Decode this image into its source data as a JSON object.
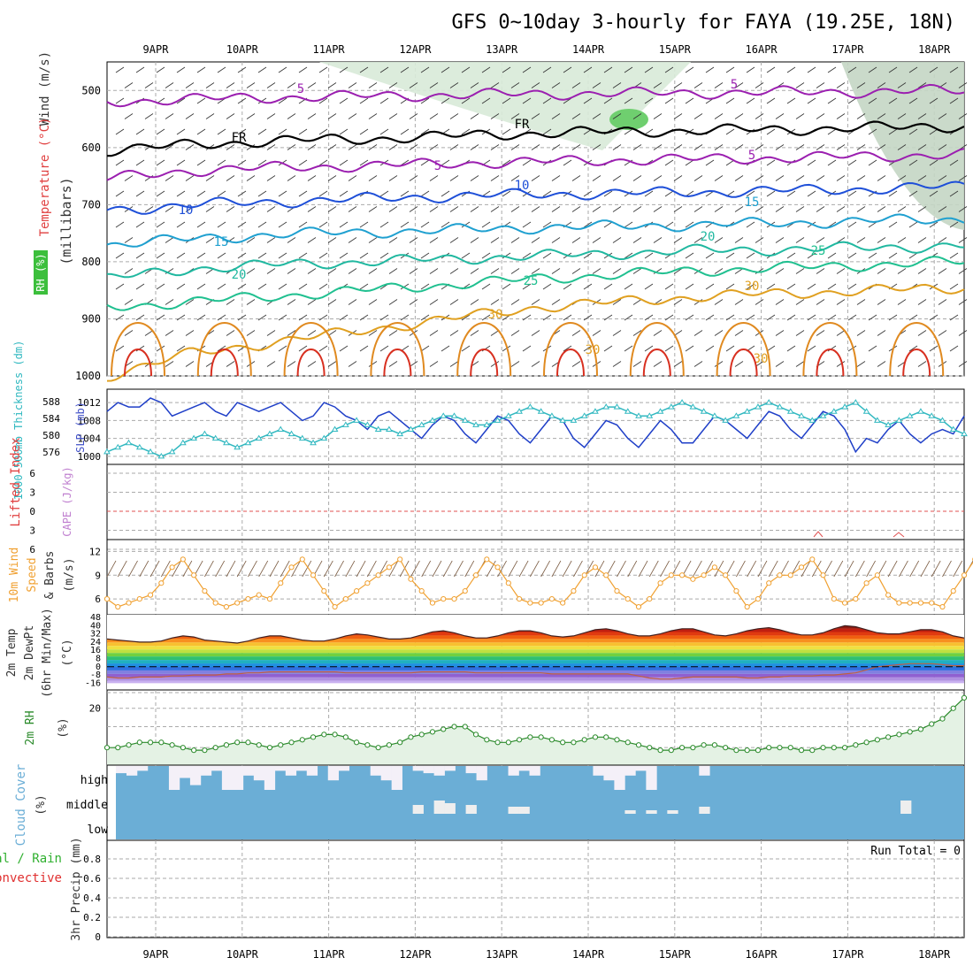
{
  "title": "GFS 0~10day 3-hourly for FAYA (19.25E, 18N)",
  "date_labels": [
    "9APR",
    "10APR",
    "11APR",
    "12APR",
    "13APR",
    "14APR",
    "15APR",
    "16APR",
    "17APR",
    "18APR"
  ],
  "chart_data": [
    {
      "id": "profile",
      "type": "contour",
      "ylabel_parts": [
        "RH (%)",
        "Temperature (°C)",
        "Wind (m/s)",
        "(millibars)"
      ],
      "y_ticks": [
        500,
        600,
        700,
        800,
        900,
        1000
      ],
      "ylim": [
        450,
        1000
      ],
      "contour_labels": [
        "5",
        "5",
        "FR",
        "FR",
        "5",
        "5",
        "10",
        "10",
        "15",
        "15",
        "20",
        "20",
        "25",
        "25",
        "30",
        "30",
        "30",
        "30"
      ],
      "isotherms": [
        {
          "label": "-5",
          "color": "#9b1fb0",
          "p": [
            520,
            515,
            512,
            510,
            508,
            506,
            505,
            504,
            503,
            502,
            500
          ]
        },
        {
          "label": "FR",
          "color": "#000000",
          "p": [
            605,
            595,
            588,
            585,
            580,
            575,
            572,
            570,
            568,
            565,
            562
          ]
        },
        {
          "label": "5",
          "color": "#9b1fb0",
          "p": [
            655,
            640,
            635,
            632,
            628,
            625,
            622,
            620,
            618,
            615,
            612
          ]
        },
        {
          "label": "10",
          "color": "#1e4fd8",
          "p": [
            710,
            700,
            695,
            690,
            685,
            682,
            680,
            678,
            675,
            672,
            668
          ]
        },
        {
          "label": "15",
          "color": "#1fa0d0",
          "p": [
            770,
            760,
            752,
            748,
            745,
            740,
            738,
            735,
            732,
            728,
            725
          ]
        },
        {
          "label": "20",
          "color": "#20b8a0",
          "p": [
            830,
            812,
            805,
            800,
            795,
            790,
            785,
            780,
            778,
            775,
            772
          ]
        },
        {
          "label": "25",
          "color": "#20c090",
          "p": [
            880,
            870,
            860,
            850,
            840,
            830,
            822,
            815,
            810,
            805,
            800
          ]
        },
        {
          "label": "30",
          "color": "#e0a020",
          "p": [
            1000,
            960,
            940,
            920,
            900,
            880,
            870,
            860,
            855,
            850,
            845
          ]
        }
      ]
    },
    {
      "id": "pressure",
      "type": "line",
      "ylabel_left": "1000-500mb Thickness (dm)",
      "ylabel_right": "SLP (mb)",
      "left_ticks": [
        "588",
        "584",
        "580",
        "576"
      ],
      "right_ticks": [
        "1012",
        "1008",
        "1004",
        "1000"
      ],
      "series": [
        {
          "name": "SLP (mb)",
          "color": "#1f3fc8",
          "values": [
            1010,
            1012,
            1011,
            1011,
            1013,
            1012,
            1009,
            1010,
            1011,
            1012,
            1010,
            1009,
            1012,
            1011,
            1010,
            1011,
            1012,
            1010,
            1008,
            1009,
            1012,
            1011,
            1009,
            1008,
            1006,
            1009,
            1010,
            1008,
            1006,
            1004,
            1007,
            1009,
            1008,
            1005,
            1003,
            1006,
            1009,
            1008,
            1005,
            1003,
            1006,
            1009,
            1008,
            1004,
            1002,
            1005,
            1008,
            1007,
            1004,
            1002,
            1005,
            1008,
            1006,
            1003,
            1003,
            1006,
            1009,
            1008,
            1006,
            1004,
            1007,
            1010,
            1009,
            1006,
            1004,
            1007,
            1010,
            1009,
            1006,
            1001,
            1004,
            1003,
            1006,
            1008,
            1005,
            1003,
            1005,
            1006,
            1005,
            1009
          ]
        },
        {
          "name": "1000-500mb Thickness (dm)",
          "color": "#30b8c0",
          "values": [
            1001,
            1002,
            1003,
            1002,
            1001,
            1000,
            1001,
            1003,
            1004,
            1005,
            1004,
            1003,
            1002,
            1003,
            1004,
            1005,
            1006,
            1005,
            1004,
            1003,
            1004,
            1006,
            1007,
            1008,
            1007,
            1006,
            1006,
            1005,
            1006,
            1007,
            1008,
            1009,
            1009,
            1008,
            1007,
            1007,
            1008,
            1009,
            1010,
            1011,
            1010,
            1009,
            1008,
            1008,
            1009,
            1010,
            1011,
            1011,
            1010,
            1009,
            1009,
            1010,
            1011,
            1012,
            1011,
            1010,
            1009,
            1008,
            1009,
            1010,
            1011,
            1012,
            1011,
            1010,
            1009,
            1008,
            1009,
            1010,
            1011,
            1012,
            1010,
            1008,
            1007,
            1008,
            1009,
            1010,
            1009,
            1008,
            1006,
            1005
          ]
        }
      ]
    },
    {
      "id": "stability",
      "type": "line",
      "ylabel_left": "Lifted Index",
      "ylabel_right": "CAPE (J/kg)",
      "ticks": [
        "6",
        "3",
        "0",
        "3",
        "6"
      ],
      "series": [
        {
          "name": "Lifted Index",
          "color": "#e03030",
          "values": []
        }
      ]
    },
    {
      "id": "wind10m",
      "type": "line",
      "ylabel_parts": [
        "10m Wind",
        "Speed",
        "& Barbs"
      ],
      "unit": "(m/s)",
      "y_ticks": [
        6,
        9,
        12
      ],
      "ylim": [
        4,
        13.5
      ],
      "series": [
        {
          "name": "10m Wind Speed (m/s)",
          "color": "#f0a030",
          "values": [
            6,
            5,
            5.5,
            6,
            6.5,
            8,
            10,
            11,
            9,
            7,
            5.5,
            5,
            5.5,
            6,
            6.5,
            6,
            8,
            10,
            11,
            9,
            7,
            5,
            6,
            7,
            8,
            9,
            10,
            11,
            8.5,
            7,
            5.5,
            6,
            6,
            7,
            9,
            11,
            10,
            8,
            6,
            5.5,
            5.5,
            6,
            5.5,
            7,
            9,
            10,
            9,
            7,
            6,
            5,
            6,
            8,
            9,
            9,
            8.5,
            9,
            10,
            9,
            7,
            5,
            6,
            8,
            9,
            9,
            10,
            11,
            9,
            6,
            5.5,
            6,
            8,
            9,
            6.5,
            5.5,
            5.5,
            5.5,
            5.5,
            5,
            7,
            9,
            11,
            12.5
          ]
        }
      ]
    },
    {
      "id": "temp2m",
      "type": "area",
      "ylabel_parts": [
        "2m Temp",
        "2m DewPt",
        "(6hr Min/Max)"
      ],
      "unit": "(°C)",
      "y_ticks": [
        "48",
        "40",
        "32",
        "24",
        "16",
        "8",
        "0",
        "-8",
        "-16"
      ],
      "ylim": [
        -20,
        48
      ],
      "series": [
        {
          "name": "2m Temp",
          "color": "#402020",
          "values": [
            27,
            26,
            25,
            24,
            24,
            25,
            28,
            30,
            29,
            26,
            25,
            24,
            23,
            25,
            28,
            30,
            30,
            28,
            26,
            25,
            25,
            27,
            30,
            32,
            31,
            29,
            27,
            27,
            28,
            31,
            34,
            35,
            33,
            30,
            28,
            28,
            30,
            33,
            35,
            35,
            33,
            30,
            29,
            30,
            33,
            36,
            37,
            35,
            32,
            30,
            30,
            32,
            35,
            37,
            37,
            34,
            31,
            30,
            32,
            35,
            37,
            38,
            36,
            33,
            31,
            31,
            33,
            37,
            40,
            39,
            36,
            33,
            32,
            32,
            34,
            36,
            36,
            34,
            30,
            28
          ]
        },
        {
          "name": "2m DewPt",
          "color": "#c06040",
          "values": [
            -10,
            -11,
            -11,
            -10,
            -10,
            -10,
            -9,
            -9,
            -8,
            -8,
            -8,
            -7,
            -7,
            -6,
            -6,
            -5,
            -5,
            -5,
            -5,
            -5,
            -5,
            -5,
            -6,
            -6,
            -6,
            -6,
            -6,
            -6,
            -6,
            -5,
            -5,
            -5,
            -5,
            -5,
            -6,
            -6,
            -6,
            -6,
            -6,
            -6,
            -6,
            -7,
            -7,
            -7,
            -7,
            -7,
            -7,
            -7,
            -7,
            -9,
            -11,
            -12,
            -12,
            -11,
            -10,
            -10,
            -10,
            -10,
            -10,
            -11,
            -11,
            -10,
            -10,
            -9,
            -9,
            -9,
            -8,
            -8,
            -7,
            -6,
            -3,
            0,
            1,
            2,
            3,
            3,
            3,
            2,
            1,
            1
          ]
        }
      ]
    },
    {
      "id": "rh2m",
      "type": "line",
      "ylabel_parts": [
        "2m RH"
      ],
      "unit": "(%)",
      "y_ticks": [
        20
      ],
      "ylim": [
        0,
        27
      ],
      "series": [
        {
          "name": "2m RH",
          "color": "#2a8a2a",
          "values": [
            5,
            5,
            6,
            7,
            7,
            7,
            6,
            5,
            4,
            4,
            5,
            6,
            7,
            7,
            6,
            5,
            6,
            7,
            8,
            9,
            10,
            10,
            9,
            7,
            6,
            5,
            6,
            7,
            9,
            10,
            11,
            12,
            13,
            13,
            10,
            8,
            7,
            7,
            8,
            9,
            9,
            8,
            7,
            7,
            8,
            9,
            9,
            8,
            7,
            6,
            5,
            4,
            4,
            5,
            5,
            6,
            6,
            5,
            4,
            4,
            4,
            5,
            5,
            5,
            4,
            4,
            5,
            5,
            5,
            6,
            7,
            8,
            9,
            10,
            11,
            12,
            14,
            16,
            20,
            24
          ]
        }
      ]
    },
    {
      "id": "cloud",
      "type": "heatmap",
      "ylabel_parts": [
        "Cloud Cover",
        "(%)"
      ],
      "row_labels": [
        "high",
        "middle",
        "low"
      ],
      "high": [
        70,
        60,
        80,
        100,
        100,
        0,
        50,
        20,
        60,
        80,
        0,
        0,
        60,
        40,
        0,
        80,
        60,
        80,
        60,
        100,
        40,
        80,
        100,
        100,
        60,
        40,
        0,
        100,
        80,
        70,
        60,
        80,
        100,
        70,
        40,
        100,
        100,
        60,
        80,
        60,
        100,
        100,
        100,
        100,
        100,
        60,
        40,
        0,
        60,
        80,
        0,
        100,
        100,
        100,
        100,
        60,
        100,
        100,
        100,
        100,
        100,
        100,
        100,
        100,
        100,
        100,
        100,
        100,
        100,
        100,
        100,
        100,
        100,
        100,
        100,
        100,
        100,
        100,
        100,
        100
      ],
      "middle": [
        100,
        100,
        100,
        100,
        100,
        100,
        100,
        100,
        100,
        100,
        100,
        100,
        100,
        100,
        100,
        100,
        100,
        100,
        100,
        100,
        100,
        100,
        100,
        100,
        100,
        100,
        100,
        100,
        100,
        100,
        100,
        100,
        100,
        100,
        100,
        100,
        100,
        100,
        100,
        100,
        100,
        100,
        100,
        100,
        100,
        100,
        100,
        100,
        100,
        100,
        100,
        100,
        100,
        100,
        100,
        100,
        100,
        100,
        100,
        100,
        100,
        100,
        100,
        100,
        100,
        100,
        100,
        100,
        100,
        100,
        100,
        100,
        100,
        100,
        100,
        100,
        100,
        100,
        100,
        100
      ]
    },
    {
      "id": "precip",
      "type": "bar",
      "ylabel_parts": [
        "Total / Rain",
        "Convective",
        "3hr Precip (mm)"
      ],
      "y_ticks": [
        "0.8",
        "0.6",
        "0.4",
        "0.2",
        "0"
      ],
      "ylim": [
        0,
        0.9
      ],
      "run_total": "Run Total = 0",
      "values": []
    }
  ]
}
